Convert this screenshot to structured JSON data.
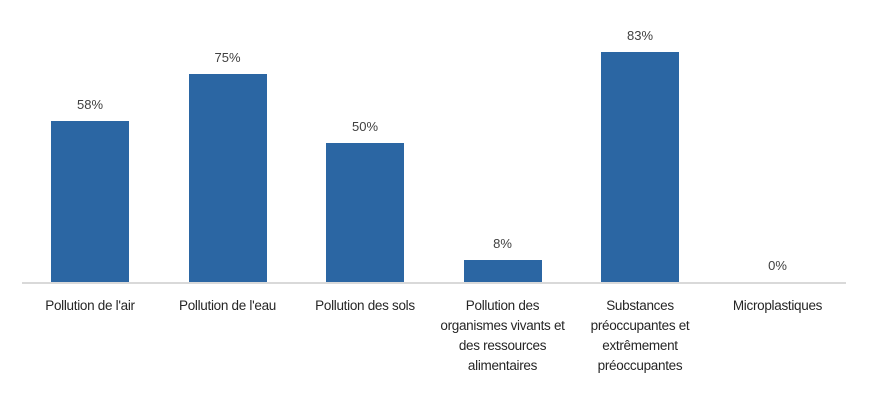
{
  "chart_data": {
    "type": "bar",
    "title": "",
    "xlabel": "",
    "ylabel": "",
    "ylim": [
      0,
      90
    ],
    "grid": false,
    "legend": null,
    "bar_color": "#2B66A3",
    "categories": [
      "Pollution de l'air",
      "Pollution de l'eau",
      "Pollution des sols",
      "Pollution des organismes vivants et des ressources alimentaires",
      "Substances préoccupantes et extrêmement préoccupantes",
      "Microplastiques"
    ],
    "values": [
      58,
      75,
      50,
      8,
      83,
      0
    ],
    "value_labels": [
      "58%",
      "75%",
      "50%",
      "8%",
      "83%",
      "0%"
    ]
  }
}
